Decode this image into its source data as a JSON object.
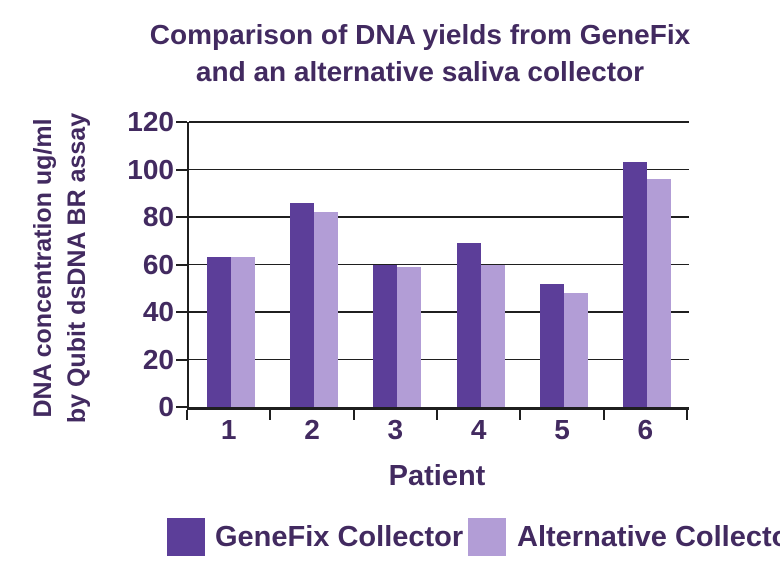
{
  "title": {
    "lines": [
      "Comparison of DNA yields from GeneFix",
      "and an alternative saliva collector"
    ]
  },
  "y_axis_label": {
    "lines": [
      "DNA concentration ug/ml",
      "by Qubit dsDNA BR assay"
    ]
  },
  "colors": {
    "text": "#422a60",
    "axis": "#1f1f1f",
    "grid": "#1f1f1f",
    "background": "#ffffff",
    "genefix_bar": "#5c3e99",
    "alternative_bar": "#b29dd6"
  },
  "chart_data": {
    "type": "bar",
    "title": "Comparison of DNA yields from GeneFix and an alternative saliva collector",
    "categories": [
      "1",
      "2",
      "3",
      "4",
      "5",
      "6"
    ],
    "xlabel": "Patient",
    "ylabel": "DNA concentration ug/ml by Qubit dsDNA BR assay",
    "ylim": [
      0,
      120
    ],
    "ytick_step": 20,
    "grid": true,
    "legend_position": "bottom",
    "series": [
      {
        "name": "GeneFix Collector",
        "color": "#5c3e99",
        "values": [
          63,
          86,
          60,
          69,
          52,
          103
        ]
      },
      {
        "name": "Alternative Collector",
        "color": "#b29dd6",
        "values": [
          63,
          82,
          59,
          60,
          48,
          96
        ]
      }
    ]
  }
}
